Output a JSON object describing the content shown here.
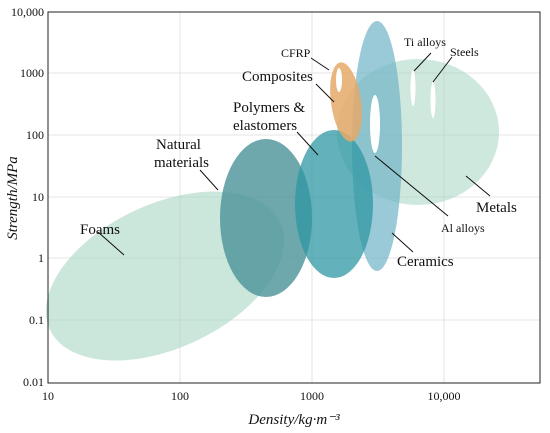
{
  "chart_data": {
    "type": "scatter",
    "title": "",
    "xlabel": "Density/kg·m⁻³",
    "ylabel": "Strength/MPa",
    "x_scale": "log",
    "y_scale": "log",
    "xlim": [
      10,
      60000
    ],
    "ylim": [
      0.01,
      10000
    ],
    "grid": true,
    "x_ticks": [
      "10",
      "100",
      "1000",
      "10,000"
    ],
    "y_ticks": [
      "0.01",
      "0.1",
      "1",
      "10",
      "100",
      "1000",
      "10,000"
    ],
    "series": [
      {
        "name": "Foams",
        "center_density": 300,
        "center_strength": 1.5,
        "color": "#a8d5c2",
        "opacity": 0.55
      },
      {
        "name": "Metals",
        "center_density": 9000,
        "center_strength": 110,
        "color": "#a8d5c2",
        "opacity": 0.55
      },
      {
        "name": "Ceramics",
        "center_density": 3000,
        "center_strength": 30,
        "color": "#6fb4c6",
        "opacity": 0.7
      },
      {
        "name": "Natural materials",
        "center_density": 450,
        "center_strength": 4,
        "color": "#4a9298",
        "opacity": 0.8
      },
      {
        "name": "Polymers & elastomers",
        "center_density": 1500,
        "center_strength": 7,
        "color": "#2f97a3",
        "opacity": 0.8
      },
      {
        "name": "Composites",
        "center_density": 1850,
        "center_strength": 300,
        "color": "#e6a96a",
        "opacity": 0.85
      },
      {
        "name": "CFRP",
        "center_density": 1700,
        "center_strength": 800,
        "color": "#ffffff",
        "opacity": 1
      },
      {
        "name": "Al alloys",
        "center_density": 2800,
        "center_strength": 150,
        "color": "#ffffff",
        "opacity": 1
      },
      {
        "name": "Ti alloys",
        "center_density": 6800,
        "center_strength": 600,
        "color": "#ffffff",
        "opacity": 1
      },
      {
        "name": "Steels",
        "center_density": 8700,
        "center_strength": 380,
        "color": "#ffffff",
        "opacity": 1
      }
    ]
  }
}
